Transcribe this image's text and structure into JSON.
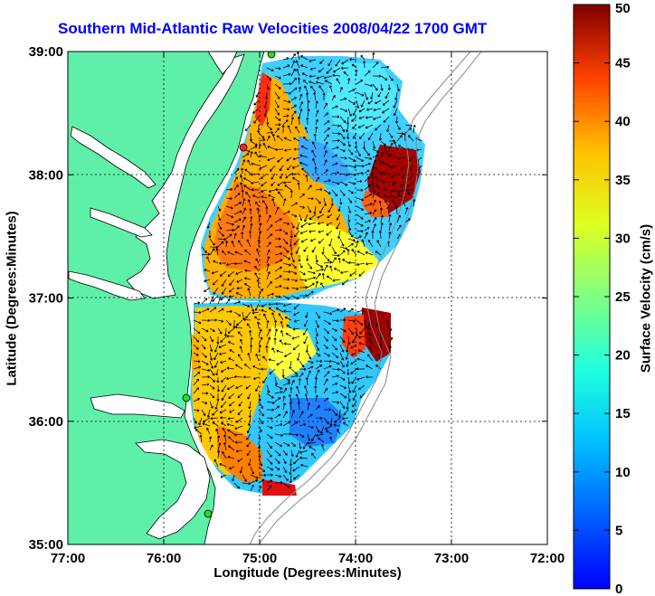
{
  "title": "Southern Mid-Atlantic Raw Velocities 2008/04/22 1700 GMT",
  "x_axis": {
    "label": "Longitude (Degrees:Minutes)",
    "ticks": [
      "77:00",
      "76:00",
      "75:00",
      "74:00",
      "73:00",
      "72:00"
    ],
    "range": [
      -77,
      -72
    ]
  },
  "y_axis": {
    "label": "Latitude (Degrees:Minutes)",
    "ticks": [
      "35:00",
      "36:00",
      "37:00",
      "38:00",
      "39:00"
    ],
    "range": [
      35,
      39
    ]
  },
  "colorbar": {
    "label": "Surface Velocity (cm/s)",
    "ticks": [
      "0",
      "5",
      "10",
      "15",
      "20",
      "25",
      "30",
      "35",
      "40",
      "45",
      "50"
    ],
    "range": [
      0,
      50
    ],
    "colormap": "jet"
  },
  "colors": {
    "land": "#5ef0a8",
    "coastline": "#000000",
    "grid": "#000000",
    "bathymetry": "#888888",
    "title": "#0000ff",
    "station_red": "#ff2020",
    "station_green": "#22dd22"
  }
}
